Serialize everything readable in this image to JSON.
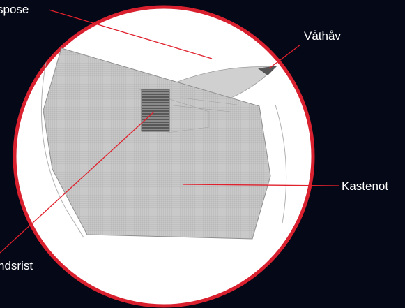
{
  "labels": {
    "top_left": "spose",
    "top_right": "Våthåv",
    "right": "Kastenot",
    "bottom_left": "ndsrist"
  },
  "colors": {
    "background": "#050816",
    "circle_fill": "#ffffff",
    "circle_stroke": "#d8202f",
    "net_fill": "#c8c8c8",
    "net_line": "#9a9a9a",
    "grid_fill": "#666666",
    "leader": "#e0202c",
    "label_text": "#ffffff"
  }
}
